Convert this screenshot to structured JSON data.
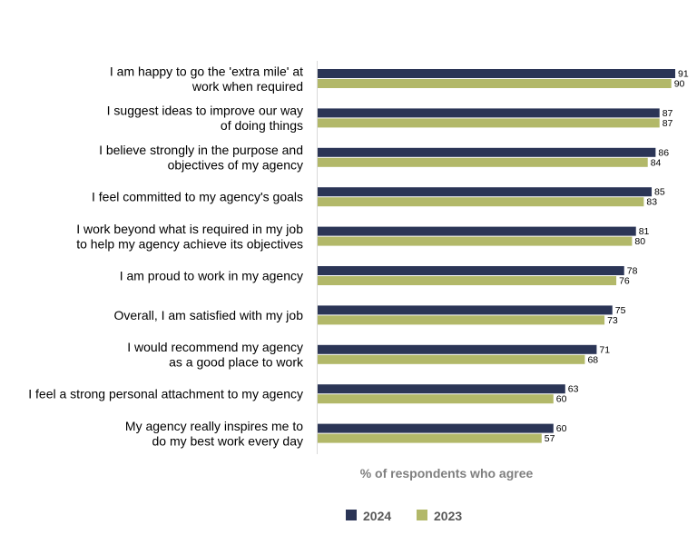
{
  "chart_data": {
    "type": "bar",
    "orientation": "horizontal",
    "categories": [
      [
        "I am happy to go the 'extra mile' at",
        "work when required"
      ],
      [
        "I suggest ideas to improve our way",
        "of doing things"
      ],
      [
        "I believe strongly in the purpose and",
        "objectives of my agency"
      ],
      [
        "I feel committed to my agency's goals"
      ],
      [
        "I work beyond what is required in my job",
        "to help my agency achieve its objectives"
      ],
      [
        "I am proud to work in my agency"
      ],
      [
        "Overall, I am satisfied with my job"
      ],
      [
        "I would recommend my agency",
        "as a good place to work"
      ],
      [
        "I feel a strong personal attachment to my agency"
      ],
      [
        "My agency really inspires me to",
        "do my best work every day"
      ]
    ],
    "series": [
      {
        "name": "2024",
        "color": "#2b3556",
        "values": [
          91,
          87,
          86,
          85,
          81,
          78,
          75,
          71,
          63,
          60
        ]
      },
      {
        "name": "2023",
        "color": "#b2b869",
        "values": [
          90,
          87,
          84,
          83,
          80,
          76,
          73,
          68,
          60,
          57
        ]
      }
    ],
    "xlabel": "% of respondents who agree",
    "xlim": [
      0,
      100
    ],
    "grid": false,
    "data_labels": true,
    "legend_position": "bottom"
  }
}
